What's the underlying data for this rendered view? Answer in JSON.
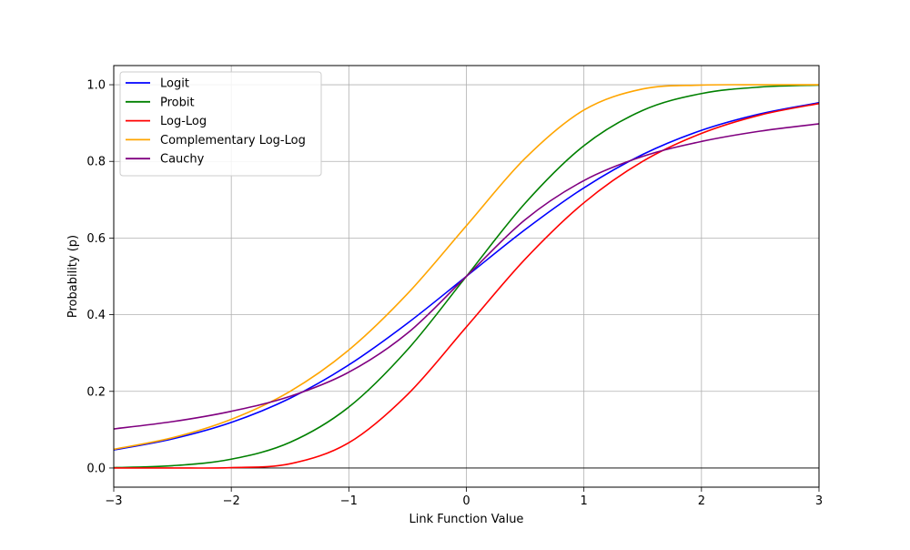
{
  "chart_data": {
    "type": "line",
    "title": "",
    "xlabel": "Link Function Value",
    "ylabel": "Probability (p)",
    "xlim": [
      -3,
      3
    ],
    "ylim": [
      -0.05,
      1.05
    ],
    "x_ticks": [
      -3,
      -2,
      -1,
      0,
      1,
      2,
      3
    ],
    "x_tick_labels": [
      "−3",
      "−2",
      "−1",
      "0",
      "1",
      "2",
      "3"
    ],
    "y_ticks": [
      0.0,
      0.2,
      0.4,
      0.6,
      0.8,
      1.0
    ],
    "y_tick_labels": [
      "0.0",
      "0.2",
      "0.4",
      "0.6",
      "0.8",
      "1.0"
    ],
    "grid": true,
    "legend_position": "top-left",
    "x": [
      -3,
      -2.5,
      -2,
      -1.5,
      -1,
      -0.5,
      0,
      0.5,
      1,
      1.5,
      2,
      2.5,
      3
    ],
    "series": [
      {
        "name": "Logit",
        "color": "#0000ff",
        "values": [
          0.047,
          0.076,
          0.119,
          0.182,
          0.269,
          0.378,
          0.5,
          0.622,
          0.731,
          0.818,
          0.881,
          0.924,
          0.953
        ]
      },
      {
        "name": "Probit",
        "color": "#008000",
        "values": [
          0.001,
          0.006,
          0.023,
          0.067,
          0.159,
          0.309,
          0.5,
          0.691,
          0.841,
          0.933,
          0.977,
          0.994,
          0.999
        ]
      },
      {
        "name": "Log-Log",
        "color": "#ff0000",
        "values": [
          0.0,
          0.0,
          0.001,
          0.011,
          0.066,
          0.192,
          0.368,
          0.545,
          0.692,
          0.8,
          0.873,
          0.921,
          0.951
        ]
      },
      {
        "name": "Complementary Log-Log",
        "color": "#ffa500",
        "values": [
          0.049,
          0.079,
          0.127,
          0.2,
          0.308,
          0.455,
          0.632,
          0.808,
          0.934,
          0.989,
          0.999,
          1.0,
          1.0
        ]
      },
      {
        "name": "Cauchy",
        "color": "#800080",
        "values": [
          0.102,
          0.121,
          0.148,
          0.187,
          0.25,
          0.352,
          0.5,
          0.648,
          0.75,
          0.813,
          0.852,
          0.879,
          0.898
        ]
      }
    ]
  }
}
